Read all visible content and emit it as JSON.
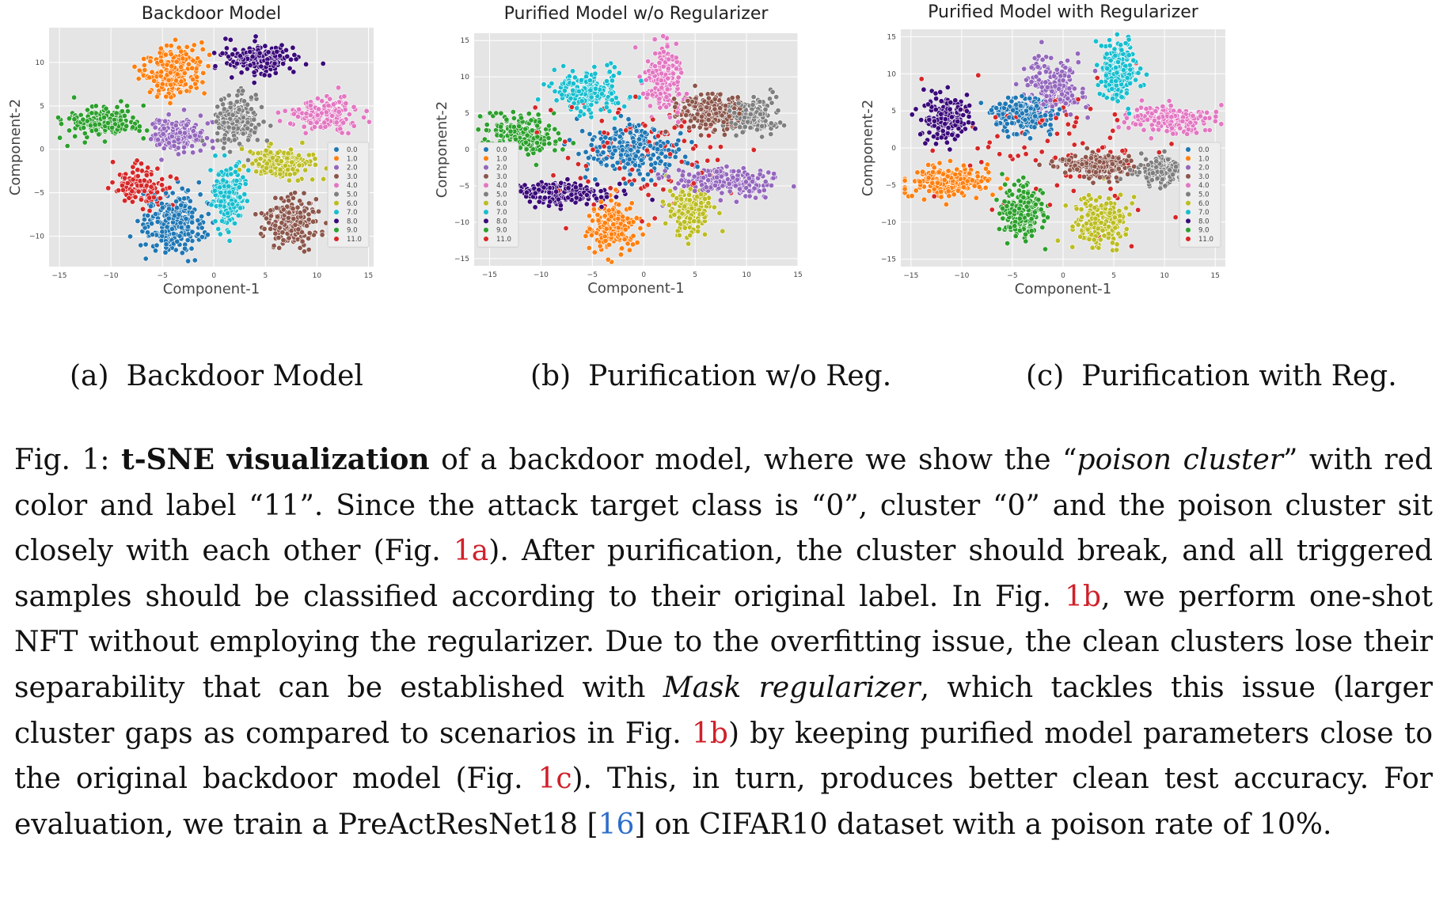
{
  "colors": {
    "0.0": "#1f77b4",
    "1.0": "#ff7f0e",
    "2.0": "#9467bd",
    "3.0": "#8c564b",
    "4.0": "#e377c2",
    "5.0": "#7f7f7f",
    "6.0": "#bcbd22",
    "7.0": "#17becf",
    "8.0": "#3b0a7a",
    "9.0": "#2ca02c",
    "11.0": "#d62728"
  },
  "chart_data": [
    {
      "type": "scatter",
      "title": "Backdoor Model",
      "xlabel": "Component-1",
      "ylabel": "Component-2",
      "xlim": [
        -16,
        15.5
      ],
      "ylim": [
        -13.5,
        14
      ],
      "xticks": [
        "−15",
        "−10",
        "−5",
        "0",
        "5",
        "10",
        "15"
      ],
      "yticks": [
        "−10",
        "−5",
        "0",
        "5",
        "10"
      ],
      "legend": [
        "0.0",
        "1.0",
        "2.0",
        "3.0",
        "4.0",
        "5.0",
        "6.0",
        "7.0",
        "8.0",
        "9.0",
        "11.0"
      ],
      "legend_placement": "lower-right",
      "grid": true,
      "clusters": [
        {
          "label": "0.0",
          "cx": -4,
          "cy": -8.5,
          "rx": 3,
          "ry": 3.5,
          "n": 260
        },
        {
          "label": "1.0",
          "cx": -4,
          "cy": 9,
          "rx": 2.8,
          "ry": 2.8,
          "n": 220
        },
        {
          "label": "2.0",
          "cx": -3.5,
          "cy": 1.8,
          "rx": 2.7,
          "ry": 2,
          "n": 200
        },
        {
          "label": "3.0",
          "cx": 7.5,
          "cy": -8.5,
          "rx": 2.5,
          "ry": 2.8,
          "n": 200
        },
        {
          "label": "4.0",
          "cx": 10.5,
          "cy": 4,
          "rx": 3.3,
          "ry": 1.8,
          "n": 200
        },
        {
          "label": "5.0",
          "cx": 2.2,
          "cy": 3.2,
          "rx": 2,
          "ry": 2.7,
          "n": 200
        },
        {
          "label": "6.0",
          "cx": 6.5,
          "cy": -1.6,
          "rx": 3,
          "ry": 1.8,
          "n": 200
        },
        {
          "label": "7.0",
          "cx": 1.3,
          "cy": -5.5,
          "rx": 1.6,
          "ry": 3.5,
          "n": 200
        },
        {
          "label": "8.0",
          "cx": 4.5,
          "cy": 10.3,
          "rx": 3.5,
          "ry": 1.6,
          "n": 200
        },
        {
          "label": "9.0",
          "cx": -11,
          "cy": 3,
          "rx": 3.5,
          "ry": 1.8,
          "n": 200
        },
        {
          "label": "11.0",
          "cx": -7,
          "cy": -4.2,
          "rx": 2.5,
          "ry": 2.2,
          "n": 140
        }
      ]
    },
    {
      "type": "scatter",
      "title": "Purified Model w/o Regularizer",
      "xlabel": "Component-1",
      "ylabel": "Component-2",
      "xlim": [
        -16.5,
        15
      ],
      "ylim": [
        -16,
        16
      ],
      "xticks": [
        "−15",
        "−10",
        "−5",
        "0",
        "5",
        "10",
        "15"
      ],
      "yticks": [
        "−15",
        "−10",
        "−5",
        "0",
        "5",
        "10",
        "15"
      ],
      "legend": [
        "0.0",
        "1.0",
        "2.0",
        "3.0",
        "4.0",
        "5.0",
        "6.0",
        "7.0",
        "8.0",
        "9.0",
        "11.0"
      ],
      "legend_placement": "lower-left",
      "grid": true,
      "clusters": [
        {
          "label": "0.0",
          "cx": -1,
          "cy": 0,
          "rx": 4.5,
          "ry": 3.5,
          "n": 240
        },
        {
          "label": "1.0",
          "cx": -3,
          "cy": -10.5,
          "rx": 2.2,
          "ry": 3.5,
          "n": 200
        },
        {
          "label": "2.0",
          "cx": 8,
          "cy": -4.5,
          "rx": 5,
          "ry": 1.8,
          "n": 200
        },
        {
          "label": "3.0",
          "cx": 6.5,
          "cy": 5,
          "rx": 3,
          "ry": 2.5,
          "n": 200
        },
        {
          "label": "4.0",
          "cx": 2,
          "cy": 10,
          "rx": 2,
          "ry": 4.5,
          "n": 200
        },
        {
          "label": "5.0",
          "cx": 10.5,
          "cy": 4.5,
          "rx": 2.5,
          "ry": 2.5,
          "n": 180
        },
        {
          "label": "6.0",
          "cx": 4.5,
          "cy": -8.5,
          "rx": 2,
          "ry": 3.5,
          "n": 180
        },
        {
          "label": "7.0",
          "cx": -5.5,
          "cy": 8,
          "rx": 3.5,
          "ry": 3,
          "n": 200
        },
        {
          "label": "8.0",
          "cx": -8,
          "cy": -6,
          "rx": 5,
          "ry": 1.6,
          "n": 200
        },
        {
          "label": "9.0",
          "cx": -11.5,
          "cy": 2,
          "rx": 3.5,
          "ry": 2.8,
          "n": 200
        },
        {
          "label": "11.0",
          "cx": 0,
          "cy": 0,
          "rx": 9,
          "ry": 9,
          "n": 110
        }
      ]
    },
    {
      "type": "scatter",
      "title": "Purified Model with Regularizer",
      "xlabel": "Component-1",
      "ylabel": "Component-2",
      "xlim": [
        -16,
        16
      ],
      "ylim": [
        -16,
        16
      ],
      "xticks": [
        "−15",
        "−10",
        "−5",
        "0",
        "5",
        "10",
        "15"
      ],
      "yticks": [
        "−15",
        "−10",
        "−5",
        "0",
        "5",
        "10",
        "15"
      ],
      "legend": [
        "0.0",
        "1.0",
        "2.0",
        "3.0",
        "4.0",
        "5.0",
        "6.0",
        "7.0",
        "8.0",
        "9.0",
        "11.0"
      ],
      "legend_placement": "right",
      "grid": true,
      "clusters": [
        {
          "label": "0.0",
          "cx": -4,
          "cy": 4.5,
          "rx": 3,
          "ry": 2.5,
          "n": 220
        },
        {
          "label": "1.0",
          "cx": -11,
          "cy": -4.5,
          "rx": 4,
          "ry": 2,
          "n": 240
        },
        {
          "label": "2.0",
          "cx": -1,
          "cy": 8,
          "rx": 3,
          "ry": 3.8,
          "n": 200
        },
        {
          "label": "3.0",
          "cx": 3.5,
          "cy": -2.3,
          "rx": 3.8,
          "ry": 1.6,
          "n": 200
        },
        {
          "label": "4.0",
          "cx": 10.5,
          "cy": 3.8,
          "rx": 4,
          "ry": 1.8,
          "n": 200
        },
        {
          "label": "5.0",
          "cx": 10,
          "cy": -3,
          "rx": 3,
          "ry": 2.2,
          "n": 180
        },
        {
          "label": "6.0",
          "cx": 4,
          "cy": -10,
          "rx": 2.7,
          "ry": 3.5,
          "n": 200
        },
        {
          "label": "7.0",
          "cx": 5.5,
          "cy": 10.5,
          "rx": 1.8,
          "ry": 4,
          "n": 200
        },
        {
          "label": "8.0",
          "cx": -11.5,
          "cy": 4,
          "rx": 2.5,
          "ry": 3.3,
          "n": 200
        },
        {
          "label": "9.0",
          "cx": -4,
          "cy": -8.5,
          "rx": 2.3,
          "ry": 3.5,
          "n": 200
        },
        {
          "label": "11.0",
          "cx": 0,
          "cy": 0,
          "rx": 10,
          "ry": 10,
          "n": 90
        }
      ]
    }
  ],
  "subcaptions": [
    {
      "tag": "(a)",
      "text": "Backdoor Model"
    },
    {
      "tag": "(b)",
      "text": "Purification w/o Reg."
    },
    {
      "tag": "(c)",
      "text": "Purification with Reg."
    }
  ],
  "caption": {
    "p1": "Fig. 1: ",
    "b1": "t-SNE visualization",
    "p2": " of a backdoor model, where we show the “",
    "i1": "poison cluster",
    "p3": "” with red color and label “11”. Since the attack target class is “0”, cluster “0” and the poison cluster sit closely with each other (Fig. ",
    "r1": "1a",
    "p4": "). After purification, the cluster should break, and all triggered samples should be classified according to their original label. In Fig. ",
    "r2": "1b",
    "p5": ", we perform one-shot NFT without employing the regularizer. Due to the overfitting issue, the clean clusters lose their separability that can be established with ",
    "i2": "Mask regularizer",
    "p6": ", which tackles this issue (larger cluster gaps as compared to scenarios in Fig. ",
    "r3": "1b",
    "p7": ") by keeping purified model parameters close to the original backdoor model (Fig. ",
    "r4": "1c",
    "p8": "). This, in turn, produces better clean test accuracy. For evaluation, we train a PreActResNet18 [",
    "c1": "16",
    "p9": "] on CIFAR10 dataset with a poison rate of 10%."
  }
}
